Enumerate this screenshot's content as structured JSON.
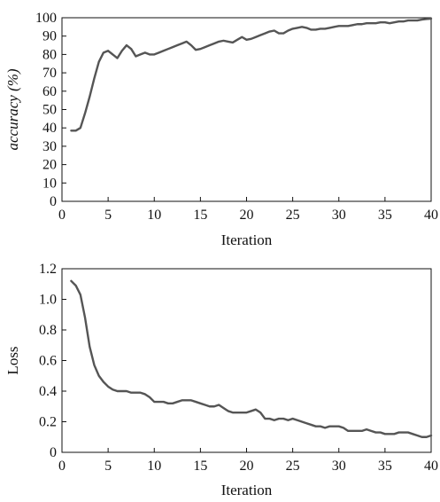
{
  "chart_data": [
    {
      "type": "line",
      "title": "",
      "xlabel": "Iteration",
      "ylabel": "accuracy (%)",
      "xlim": [
        0,
        40
      ],
      "ylim": [
        0,
        100
      ],
      "xticks": [
        0,
        5,
        10,
        15,
        20,
        25,
        30,
        35,
        40
      ],
      "yticks": [
        0,
        10,
        20,
        30,
        40,
        50,
        60,
        70,
        80,
        90,
        100
      ],
      "grid": false,
      "legend": "none",
      "line_color": "#555555",
      "x": [
        1,
        1.5,
        2,
        2.5,
        3,
        3.5,
        4,
        4.5,
        5,
        5.5,
        6,
        6.5,
        7,
        7.5,
        8,
        8.5,
        9,
        9.5,
        10,
        10.5,
        11,
        11.5,
        12,
        12.5,
        13,
        13.5,
        14,
        14.5,
        15,
        15.5,
        16,
        16.5,
        17,
        17.5,
        18,
        18.5,
        19,
        19.5,
        20,
        20.5,
        21,
        21.5,
        22,
        22.5,
        23,
        23.5,
        24,
        24.5,
        25,
        25.5,
        26,
        26.5,
        27,
        27.5,
        28,
        28.5,
        29,
        29.5,
        30,
        30.5,
        31,
        31.5,
        32,
        32.5,
        33,
        33.5,
        34,
        34.5,
        35,
        35.5,
        36,
        36.5,
        37,
        37.5,
        38,
        38.5,
        39,
        39.5,
        40
      ],
      "y": [
        38.5,
        38.5,
        40,
        48,
        57,
        67,
        76,
        81,
        82,
        80,
        78,
        82,
        85,
        83,
        79,
        80,
        81,
        80,
        80,
        81,
        82,
        83,
        84,
        85,
        86,
        87,
        85,
        82.5,
        83,
        84,
        85,
        86,
        87,
        87.5,
        87,
        86.5,
        88,
        89.5,
        88,
        88.5,
        89.5,
        90.5,
        91.5,
        92.5,
        93,
        91.5,
        91.5,
        93,
        94,
        94.5,
        95,
        94.5,
        93.5,
        93.5,
        94,
        94,
        94.5,
        95,
        95.5,
        95.5,
        95.5,
        96,
        96.5,
        96.5,
        97,
        97,
        97,
        97.5,
        97.5,
        97,
        97.5,
        98,
        98,
        98.5,
        98.5,
        98.5,
        99,
        99.3,
        99.5
      ]
    },
    {
      "type": "line",
      "title": "",
      "xlabel": "Iteration",
      "ylabel": "Loss",
      "xlim": [
        0,
        40
      ],
      "ylim": [
        0,
        1.2
      ],
      "xticks": [
        0,
        5,
        10,
        15,
        20,
        25,
        30,
        35,
        40
      ],
      "yticks": [
        0,
        0.2,
        0.4,
        0.6,
        0.8,
        1.0,
        1.2
      ],
      "ytick_labels": [
        "0",
        "0.2",
        "0.4",
        "0.6",
        "0.8",
        "1.0",
        "1.2"
      ],
      "grid": false,
      "legend": "none",
      "line_color": "#555555",
      "x": [
        1,
        1.5,
        2,
        2.5,
        3,
        3.5,
        4,
        4.5,
        5,
        5.5,
        6,
        6.5,
        7,
        7.5,
        8,
        8.5,
        9,
        9.5,
        10,
        10.5,
        11,
        11.5,
        12,
        12.5,
        13,
        13.5,
        14,
        14.5,
        15,
        15.5,
        16,
        16.5,
        17,
        17.5,
        18,
        18.5,
        19,
        19.5,
        20,
        20.5,
        21,
        21.5,
        22,
        22.5,
        23,
        23.5,
        24,
        24.5,
        25,
        25.5,
        26,
        26.5,
        27,
        27.5,
        28,
        28.5,
        29,
        29.5,
        30,
        30.5,
        31,
        31.5,
        32,
        32.5,
        33,
        33.5,
        34,
        34.5,
        35,
        35.5,
        36,
        36.5,
        37,
        37.5,
        38,
        38.5,
        39,
        39.5,
        40
      ],
      "y": [
        1.12,
        1.09,
        1.03,
        0.88,
        0.69,
        0.57,
        0.5,
        0.46,
        0.43,
        0.41,
        0.4,
        0.4,
        0.4,
        0.39,
        0.39,
        0.39,
        0.38,
        0.36,
        0.33,
        0.33,
        0.33,
        0.32,
        0.32,
        0.33,
        0.34,
        0.34,
        0.34,
        0.33,
        0.32,
        0.31,
        0.3,
        0.3,
        0.31,
        0.29,
        0.27,
        0.26,
        0.26,
        0.26,
        0.26,
        0.27,
        0.28,
        0.26,
        0.22,
        0.22,
        0.21,
        0.22,
        0.22,
        0.21,
        0.22,
        0.21,
        0.2,
        0.19,
        0.18,
        0.17,
        0.17,
        0.16,
        0.17,
        0.17,
        0.17,
        0.16,
        0.14,
        0.14,
        0.14,
        0.14,
        0.15,
        0.14,
        0.13,
        0.13,
        0.12,
        0.12,
        0.12,
        0.13,
        0.13,
        0.13,
        0.12,
        0.11,
        0.1,
        0.1,
        0.11
      ]
    }
  ]
}
